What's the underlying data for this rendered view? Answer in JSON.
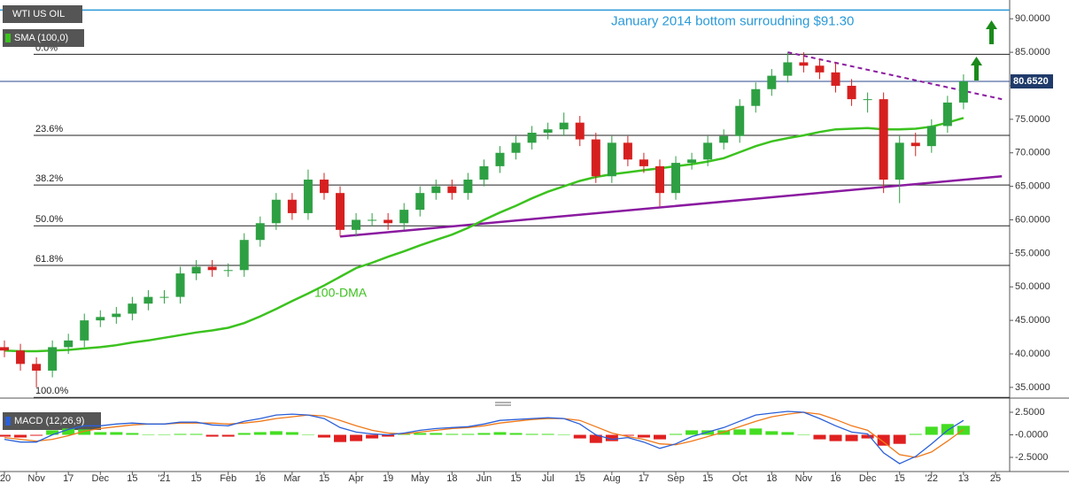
{
  "chart_data": {
    "type": "candlestick",
    "title": "WTI US OIL",
    "indicator_label": "SMA (100,0)",
    "categories": [
      "'20",
      null,
      "Nov",
      null,
      "17",
      null,
      "Dec",
      null,
      "15",
      null,
      "'21",
      null,
      "15",
      null,
      "Feb",
      null,
      "16",
      null,
      "Mar",
      null,
      "15",
      null,
      "Apr",
      null,
      "19",
      null,
      "May",
      null,
      "18",
      null,
      "Jun",
      null,
      "15",
      null,
      "Jul",
      null,
      "15",
      null,
      "Aug",
      null,
      "17",
      null,
      "Sep",
      null,
      "15",
      null,
      "Oct",
      null,
      "18",
      null,
      "Nov",
      null,
      "16",
      null,
      "Dec",
      null,
      "15",
      null,
      "'22",
      null,
      "13",
      null,
      "25"
    ],
    "open": [
      41,
      40.5,
      38.5,
      37.5,
      41,
      42,
      45,
      45.5,
      46,
      47.5,
      48.5,
      48.5,
      52,
      53,
      52.5,
      52.5,
      57,
      59.5,
      63,
      61,
      66,
      64,
      58.5,
      60,
      60,
      59.5,
      61.5,
      64,
      65,
      64,
      66,
      68,
      70,
      71.5,
      73,
      73.5,
      74.5,
      72,
      66.5,
      71.5,
      69,
      68,
      64,
      68.5,
      69,
      71.5,
      72.5,
      77,
      79.5,
      81.5,
      83.5,
      83,
      82,
      80,
      78,
      78,
      66,
      71.5,
      71,
      74,
      77.5,
      null,
      null
    ],
    "high": [
      42,
      41.5,
      39.5,
      42,
      43,
      46,
      46.5,
      47,
      48.5,
      49.5,
      49.5,
      53,
      54,
      54,
      53.5,
      58,
      60.5,
      64,
      64,
      67.5,
      67,
      65,
      61,
      61,
      61,
      62.5,
      65,
      66,
      66,
      67,
      69,
      71,
      72.5,
      74,
      74.5,
      76,
      75.5,
      73,
      72.5,
      72.5,
      70,
      69,
      69.5,
      70,
      72.5,
      73.5,
      78,
      80.5,
      82.5,
      85,
      85,
      84,
      83.5,
      81,
      79,
      79,
      72.5,
      73,
      75,
      78.5,
      81.7,
      null,
      null
    ],
    "low": [
      39.5,
      37.5,
      35,
      36.5,
      40,
      41,
      44,
      44.5,
      45,
      46.5,
      47.5,
      47.5,
      51,
      51.5,
      51.5,
      51.5,
      56,
      58.5,
      60,
      60,
      63,
      57.5,
      57.5,
      59,
      58.5,
      58.5,
      60.5,
      63,
      63,
      63,
      65,
      67,
      69,
      70.5,
      72,
      72.5,
      71,
      65.5,
      65.5,
      68,
      67,
      62,
      63,
      67.5,
      68,
      70.5,
      71.5,
      76,
      78.5,
      80.5,
      82,
      81,
      79,
      77,
      76,
      64,
      62.5,
      69.5,
      70,
      73,
      76.5,
      null,
      null
    ],
    "close": [
      40.5,
      38.5,
      37.5,
      41,
      42,
      45,
      45.5,
      46,
      47.5,
      48.5,
      48.5,
      52,
      53,
      52.5,
      52.5,
      57,
      59.5,
      63,
      61,
      66,
      64,
      58.5,
      60,
      60,
      59.5,
      61.5,
      64,
      65,
      64,
      66,
      68,
      70,
      71.5,
      73,
      73.5,
      74.5,
      72,
      66.5,
      71.5,
      69,
      68,
      64,
      68.5,
      69,
      71.5,
      72.5,
      77,
      79.5,
      81.5,
      83.5,
      83,
      82,
      80,
      78,
      78,
      66,
      71.5,
      71,
      74,
      77.5,
      80.65,
      null,
      null
    ],
    "up_color": "#2ea043",
    "down_color": "#d62020",
    "sma": {
      "name": "100-DMA",
      "color": "#3cc21f",
      "values": [
        40.5,
        40.4,
        40.4,
        40.5,
        40.6,
        40.8,
        41,
        41.3,
        41.7,
        42,
        42.4,
        42.8,
        43.2,
        43.5,
        43.9,
        44.6,
        45.6,
        46.7,
        47.9,
        49,
        50.2,
        51.5,
        52.8,
        53.6,
        54.5,
        55.3,
        56.2,
        57,
        57.8,
        58.8,
        60,
        61.1,
        62.1,
        63.2,
        64.2,
        65,
        65.8,
        66.4,
        66.8,
        67.1,
        67.4,
        67.7,
        68,
        68.3,
        68.7,
        69.2,
        70.1,
        71,
        71.7,
        72.2,
        72.6,
        73.1,
        73.5,
        73.6,
        73.7,
        73.5,
        73.5,
        73.6,
        73.9,
        74.5,
        75.2,
        null,
        null
      ]
    },
    "ylim": [
      33.4,
      92.8
    ],
    "yticks": [
      {
        "value": 35,
        "label": "35.0000"
      },
      {
        "value": 40,
        "label": "40.0000"
      },
      {
        "value": 45,
        "label": "45.0000"
      },
      {
        "value": 50,
        "label": "50.0000"
      },
      {
        "value": 55,
        "label": "55.0000"
      },
      {
        "value": 60,
        "label": "60.0000"
      },
      {
        "value": 65,
        "label": "65.0000"
      },
      {
        "value": 70,
        "label": "70.0000"
      },
      {
        "value": 75,
        "label": "75.0000"
      },
      {
        "value": 80,
        "label": "80.0000"
      },
      {
        "value": 85,
        "label": "85.0000"
      },
      {
        "value": 90,
        "label": "90.0000"
      }
    ],
    "fib_levels": [
      {
        "value": 84.7,
        "label": "0.0%"
      },
      {
        "value": 72.6,
        "label": "23.6%"
      },
      {
        "value": 65.2,
        "label": "38.2%"
      },
      {
        "value": 59.1,
        "label": "50.0%"
      },
      {
        "value": 53.2,
        "label": "61.8%"
      },
      {
        "value": 33.5,
        "label": "100.0%"
      }
    ],
    "resistance_level": {
      "value": 91.3,
      "label": "January 2014 bottom surroudning $91.30",
      "color": "#2a9ad8"
    },
    "current_price": {
      "value": 80.652,
      "label": "80.6520"
    },
    "support_trendline": {
      "start": 57.5,
      "end": 66.5,
      "color": "#8a1aa0"
    },
    "resistance_trendline": {
      "start": 85,
      "end": 78,
      "color": "#8a1aa0"
    },
    "macd": {
      "label": "MACD (12,26,9)",
      "ylim": [
        -4.07,
        3.58
      ],
      "yticks": [
        {
          "value": 2.5,
          "label": "2.5000"
        },
        {
          "value": 0,
          "label": "-0.0000"
        },
        {
          "value": -2.5,
          "label": "-2.5000"
        }
      ],
      "macd_line": {
        "color": "#2a5fd8",
        "values": [
          -0.5,
          -0.8,
          -0.8,
          0,
          0.6,
          1,
          1,
          1.2,
          1.3,
          1.2,
          1.2,
          1.4,
          1.4,
          1.1,
          1,
          1.5,
          1.8,
          2.2,
          2.3,
          2.2,
          1.8,
          0.8,
          0.3,
          0.1,
          0,
          0.2,
          0.5,
          0.7,
          0.8,
          0.9,
          1.2,
          1.6,
          1.7,
          1.8,
          1.9,
          1.8,
          1.2,
          0,
          -0.5,
          -0.3,
          -0.8,
          -1.5,
          -1,
          -0.2,
          0.3,
          0.8,
          1.5,
          2.2,
          2.4,
          2.6,
          2.5,
          1.8,
          1,
          0.3,
          0.1,
          -2,
          -3.2,
          -2.4,
          -1,
          0.5,
          1.6,
          null,
          null
        ]
      },
      "signal_line": {
        "color": "#f07818",
        "values": [
          -0.3,
          -0.5,
          -0.7,
          -0.5,
          -0.1,
          0.4,
          0.7,
          0.9,
          1.1,
          1.2,
          1.2,
          1.3,
          1.3,
          1.3,
          1.2,
          1.3,
          1.5,
          1.8,
          2,
          2.2,
          2.1,
          1.6,
          1,
          0.5,
          0.2,
          0.1,
          0.3,
          0.5,
          0.7,
          0.8,
          1,
          1.3,
          1.5,
          1.7,
          1.8,
          1.8,
          1.6,
          0.9,
          0.2,
          -0.2,
          -0.5,
          -1,
          -1.1,
          -0.7,
          -0.2,
          0.3,
          0.9,
          1.5,
          2,
          2.3,
          2.5,
          2.3,
          1.7,
          1,
          0.5,
          -0.8,
          -2.2,
          -2.5,
          -1.9,
          -0.7,
          0.6,
          null,
          null
        ]
      },
      "histogram": {
        "pos_color": "#44dd22",
        "neg_color": "#e02020",
        "values": [
          -0.2,
          -0.3,
          -0.1,
          0.5,
          0.7,
          0.6,
          0.3,
          0.3,
          0.2,
          0,
          0,
          0.1,
          0.1,
          -0.2,
          -0.2,
          0.2,
          0.3,
          0.4,
          0.3,
          0,
          -0.3,
          -0.8,
          -0.7,
          -0.4,
          -0.2,
          0.1,
          0.2,
          0.2,
          0.1,
          0.1,
          0.2,
          0.3,
          0.2,
          0.1,
          0.1,
          0,
          -0.4,
          -0.9,
          -0.7,
          -0.1,
          -0.3,
          -0.5,
          0.1,
          0.5,
          0.5,
          0.5,
          0.6,
          0.7,
          0.4,
          0.3,
          0,
          -0.5,
          -0.7,
          -0.7,
          -0.4,
          -1.2,
          -1,
          0.1,
          0.9,
          1.2,
          1,
          null,
          null
        ]
      }
    }
  }
}
